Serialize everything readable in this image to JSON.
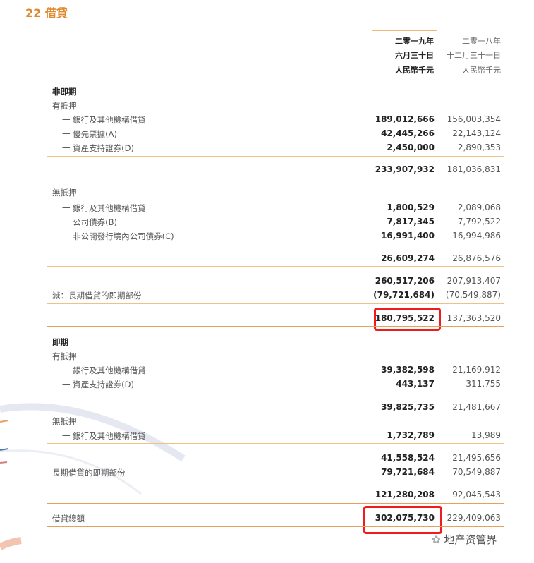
{
  "title": "22 借貸",
  "header": {
    "col2019": [
      "二零一九年",
      "六月三十日",
      "人民幣千元"
    ],
    "col2018": [
      "二零一八年",
      "十二月三十一日",
      "人民幣千元"
    ]
  },
  "rows": [
    {
      "label": "非即期",
      "kind": "section"
    },
    {
      "label": "有抵押",
      "kind": "group"
    },
    {
      "label": "一 銀行及其他機構借貸",
      "kind": "item",
      "v2019": "189,012,666",
      "v2018": "156,003,354"
    },
    {
      "label": "一 優先票據(A)",
      "kind": "item",
      "v2019": "42,445,266",
      "v2018": "22,143,124"
    },
    {
      "label": "一 資產支持證券(D)",
      "kind": "item",
      "v2019": "2,450,000",
      "v2018": "2,890,353"
    },
    {
      "label": "",
      "kind": "total",
      "v2019": "233,907,932",
      "v2018": "181,036,831"
    },
    {
      "label": "無抵押",
      "kind": "group"
    },
    {
      "label": "一 銀行及其他機構借貸",
      "kind": "item",
      "v2019": "1,800,529",
      "v2018": "2,089,068"
    },
    {
      "label": "一 公司債券(B)",
      "kind": "item",
      "v2019": "7,817,345",
      "v2018": "7,792,522"
    },
    {
      "label": "一 非公開發行境內公司債券(C)",
      "kind": "item",
      "v2019": "16,991,400",
      "v2018": "16,994,986"
    },
    {
      "label": "",
      "kind": "total",
      "v2019": "26,609,274",
      "v2018": "26,876,576"
    },
    {
      "label": "",
      "kind": "total",
      "v2019": "260,517,206",
      "v2018": "207,913,407"
    },
    {
      "label": "減：長期借貸的即期部份",
      "kind": "group",
      "v2019": "(79,721,684)",
      "v2018": "(70,549,887)"
    },
    {
      "label": "",
      "kind": "total",
      "v2019": "180,795,522",
      "v2018": "137,363,520",
      "highlight": true
    },
    {
      "label": "即期",
      "kind": "section"
    },
    {
      "label": "有抵押",
      "kind": "group"
    },
    {
      "label": "一 銀行及其他機構借貸",
      "kind": "item",
      "v2019": "39,382,598",
      "v2018": "21,169,912"
    },
    {
      "label": "一 資產支持證券(D)",
      "kind": "item",
      "v2019": "443,137",
      "v2018": "311,755"
    },
    {
      "label": "",
      "kind": "total",
      "v2019": "39,825,735",
      "v2018": "21,481,667"
    },
    {
      "label": "無抵押",
      "kind": "group"
    },
    {
      "label": "一 銀行及其他機構借貸",
      "kind": "item",
      "v2019": "1,732,789",
      "v2018": "13,989"
    },
    {
      "label": "",
      "kind": "total",
      "v2019": "41,558,524",
      "v2018": "21,495,656"
    },
    {
      "label": "長期借貸的即期部份",
      "kind": "group",
      "v2019": "79,721,684",
      "v2018": "70,549,887"
    },
    {
      "label": "",
      "kind": "total",
      "v2019": "121,280,208",
      "v2018": "92,045,543"
    },
    {
      "label": "借貸總額",
      "kind": "group",
      "v2019": "302,075,730",
      "v2018": "229,409,063",
      "highlight": true
    }
  ],
  "highlight_color": "#ee1c1c",
  "accent_color": "#e08a2e",
  "watermark": "地产资管界"
}
